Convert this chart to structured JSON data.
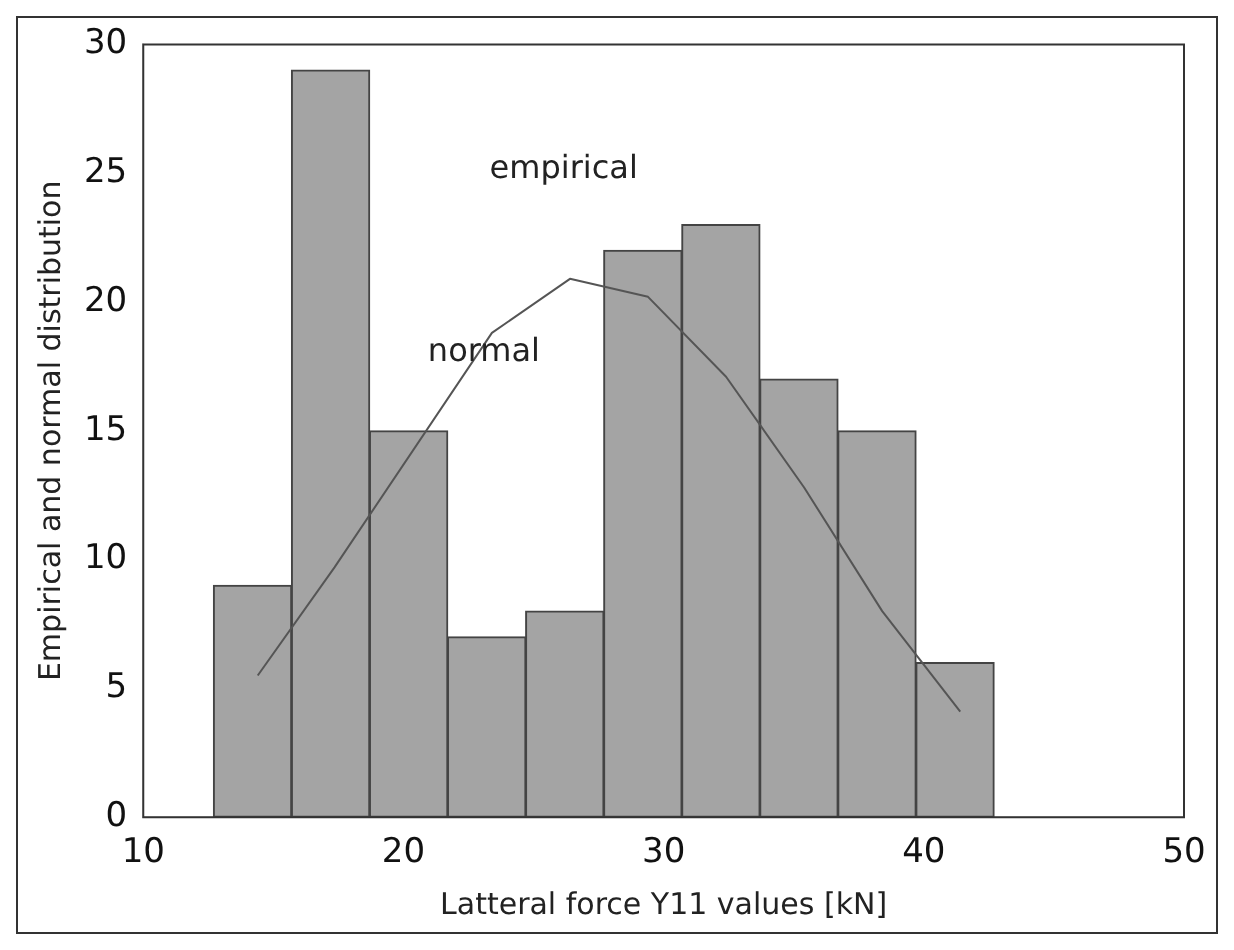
{
  "chart_data": {
    "type": "histogram",
    "xlabel": "Latteral force Y11 values [kN]",
    "ylabel": "Empirical and normal distribution",
    "series": [
      {
        "name": "empirical",
        "color": "#a4a4a4",
        "bins": [
          12.7,
          15.7,
          18.7,
          21.7,
          24.7,
          27.7,
          30.7,
          33.7,
          36.7,
          39.7,
          42.7
        ],
        "values": [
          9,
          29,
          15,
          7,
          8,
          22,
          23,
          17,
          15,
          6
        ]
      },
      {
        "type": "line",
        "name": "normal",
        "color": "#555555",
        "x": [
          14.4,
          17.35,
          23.4,
          26.4,
          29.4,
          32.4,
          35.4,
          38.4,
          41.4
        ],
        "values": [
          5.5,
          9.7,
          18.8,
          20.9,
          20.2,
          17.1,
          12.8,
          8.0,
          4.1
        ]
      }
    ],
    "xlim": [
      10,
      50
    ],
    "xticks": [
      10,
      20,
      30,
      40,
      50
    ],
    "ylim": [
      0,
      30
    ],
    "yticks": [
      0,
      5,
      10,
      15,
      20,
      25,
      30
    ],
    "grid": false,
    "legend": false,
    "marker": "none",
    "line_style": "solid"
  }
}
